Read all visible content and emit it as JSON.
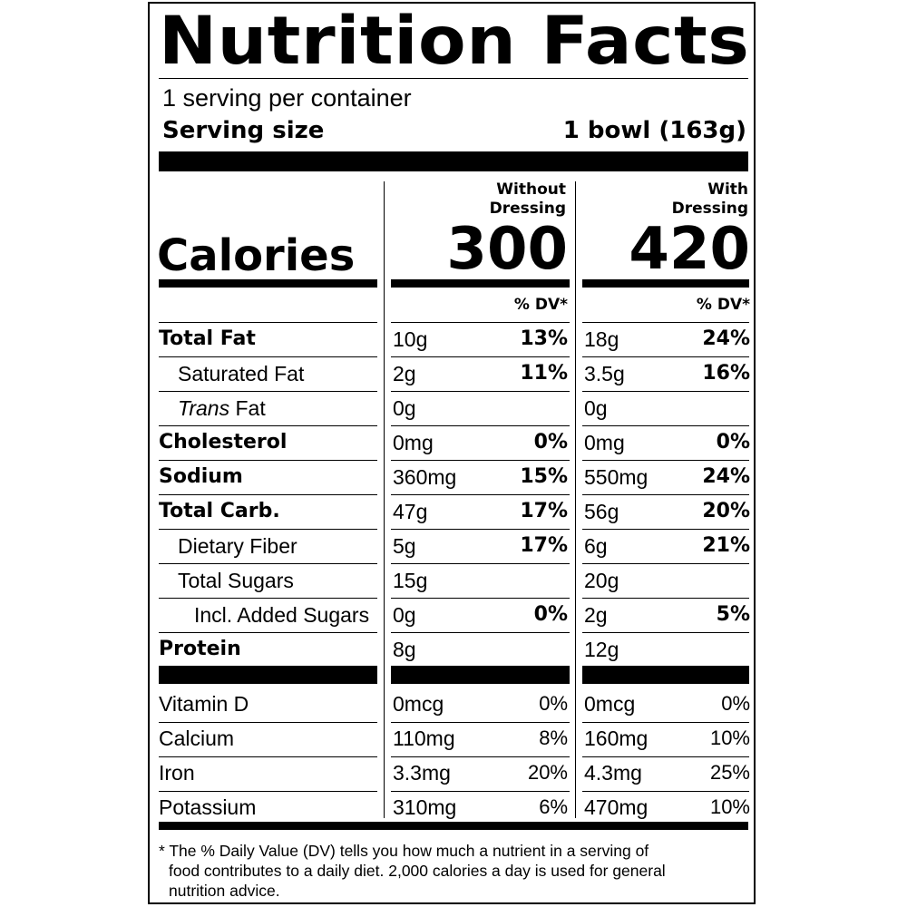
{
  "title": "Nutrition Facts",
  "servings_per_container": "1 serving per container",
  "serving_size_label": "Serving size",
  "serving_size_value": "1 bowl (163g)",
  "calories_label": "Calories",
  "columns": [
    {
      "head_line1": "Without",
      "head_line2": "Dressing",
      "calories": "300",
      "dv_head": "% DV*"
    },
    {
      "head_line1": "With",
      "head_line2": "Dressing",
      "calories": "420",
      "dv_head": "% DV*"
    }
  ],
  "nutrients": [
    {
      "name": "Total Fat",
      "style": "bold",
      "indent": 0,
      "c1_amt": "10g",
      "c1_dv": "13%",
      "c2_amt": "18g",
      "c2_dv": "24%"
    },
    {
      "name": "Saturated Fat",
      "style": "normal",
      "indent": 1,
      "c1_amt": "2g",
      "c1_dv": "11%",
      "c2_amt": "3.5g",
      "c2_dv": "16%"
    },
    {
      "name_italic": "Trans",
      "name": " Fat",
      "style": "normal",
      "indent": 1,
      "c1_amt": "0g",
      "c1_dv": "",
      "c2_amt": "0g",
      "c2_dv": ""
    },
    {
      "name": "Cholesterol",
      "style": "bold",
      "indent": 0,
      "c1_amt": "0mg",
      "c1_dv": "0%",
      "c2_amt": "0mg",
      "c2_dv": "0%"
    },
    {
      "name": "Sodium",
      "style": "bold",
      "indent": 0,
      "c1_amt": "360mg",
      "c1_dv": "15%",
      "c2_amt": "550mg",
      "c2_dv": "24%"
    },
    {
      "name": "Total Carb.",
      "style": "bold",
      "indent": 0,
      "c1_amt": "47g",
      "c1_dv": "17%",
      "c2_amt": "56g",
      "c2_dv": "20%"
    },
    {
      "name": "Dietary Fiber",
      "style": "normal",
      "indent": 1,
      "c1_amt": "5g",
      "c1_dv": "17%",
      "c2_amt": "6g",
      "c2_dv": "21%"
    },
    {
      "name": "Total Sugars",
      "style": "normal",
      "indent": 1,
      "c1_amt": "15g",
      "c1_dv": "",
      "c2_amt": "20g",
      "c2_dv": ""
    },
    {
      "name": "Incl. Added Sugars",
      "style": "normal",
      "indent": 2,
      "c1_amt": "0g",
      "c1_dv": "0%",
      "c2_amt": "2g",
      "c2_dv": "5%"
    },
    {
      "name": "Protein",
      "style": "bold",
      "indent": 0,
      "c1_amt": "8g",
      "c1_dv": "",
      "c2_amt": "12g",
      "c2_dv": ""
    }
  ],
  "vitamins": [
    {
      "name": "Vitamin D",
      "c1_amt": "0mcg",
      "c1_dv": "0%",
      "c2_amt": "0mcg",
      "c2_dv": "0%"
    },
    {
      "name": "Calcium",
      "c1_amt": "110mg",
      "c1_dv": "8%",
      "c2_amt": "160mg",
      "c2_dv": "10%"
    },
    {
      "name": "Iron",
      "c1_amt": "3.3mg",
      "c1_dv": "20%",
      "c2_amt": "4.3mg",
      "c2_dv": "25%"
    },
    {
      "name": "Potassium",
      "c1_amt": "310mg",
      "c1_dv": "6%",
      "c2_amt": "470mg",
      "c2_dv": "10%"
    }
  ],
  "footnote_lines": [
    "* The % Daily Value (DV) tells you how much a nutrient in a serving of",
    "food contributes to a daily diet. 2,000 calories a day is used for general",
    "nutrition advice."
  ]
}
